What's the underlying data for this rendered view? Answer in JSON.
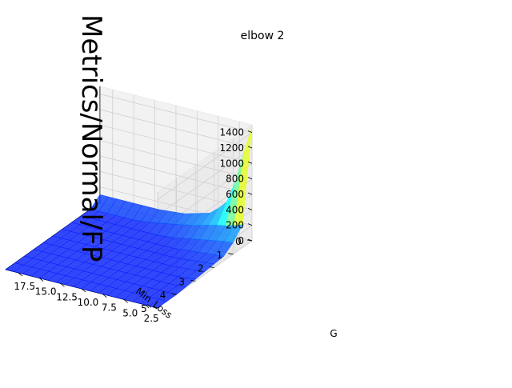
{
  "chart_data": {
    "type": "surface3d",
    "title": "elbow 2",
    "xlabel": "G",
    "ylabel": "Min_Loss",
    "zlabel": "Metrics/Normal/FP",
    "x_ticks": [
      "2.5",
      "5.0",
      "7.5",
      "10.0",
      "12.5",
      "15.0",
      "17.5"
    ],
    "y_ticks": [
      "0",
      "1",
      "2",
      "3",
      "4",
      "5"
    ],
    "z_ticks": [
      "0",
      "200",
      "400",
      "600",
      "800",
      "1000",
      "1200",
      "1400"
    ],
    "xlim": [
      1,
      19
    ],
    "ylim": [
      0,
      5
    ],
    "zlim": [
      0,
      1500
    ],
    "grid": true,
    "colormap": "jet",
    "surface": {
      "G": [
        1,
        2,
        3,
        4,
        5,
        6,
        7,
        8,
        9,
        10,
        11,
        12,
        13,
        14,
        15,
        16,
        17,
        18,
        19
      ],
      "Min_Loss": [
        0,
        0.5,
        1,
        1.5,
        2,
        2.5,
        3,
        3.5,
        4,
        4.5,
        5
      ],
      "z_at_min_loss_0": [
        1480,
        1100,
        700,
        420,
        310,
        220,
        190,
        160,
        130,
        120,
        110,
        100,
        100,
        100,
        100,
        100,
        100,
        100,
        100
      ],
      "z_at_min_loss_0_5": [
        300,
        260,
        230,
        210,
        180,
        150,
        120,
        100,
        80,
        60,
        40,
        20,
        10,
        0,
        0,
        0,
        0,
        0,
        0
      ],
      "z_at_min_loss_1": [
        150,
        140,
        120,
        100,
        80,
        60,
        40,
        20,
        10,
        0,
        0,
        0,
        0,
        0,
        0,
        0,
        0,
        0,
        0
      ],
      "z_at_min_loss_1_5_and_above": [
        60,
        50,
        40,
        30,
        20,
        10,
        0,
        0,
        0,
        0,
        0,
        0,
        0,
        0,
        0,
        0,
        0,
        0,
        0
      ]
    }
  }
}
